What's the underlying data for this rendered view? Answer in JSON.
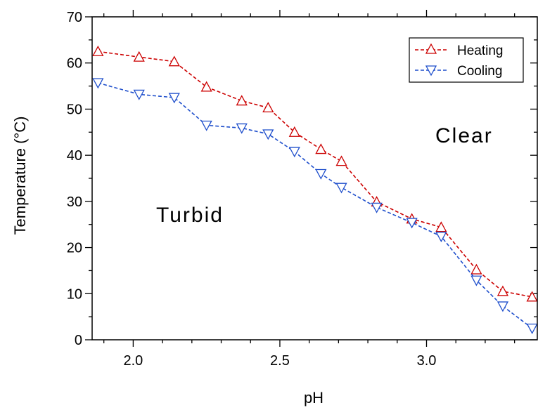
{
  "chart_data": {
    "type": "line",
    "xlabel": "pH",
    "ylabel": "Temperature (°C)",
    "xlim": [
      1.86,
      3.38
    ],
    "ylim": [
      0,
      70
    ],
    "x_ticks": [
      2.0,
      2.5,
      3.0
    ],
    "x_tick_labels": [
      "2.0",
      "2.5",
      "3.0"
    ],
    "y_ticks": [
      0,
      10,
      20,
      30,
      40,
      50,
      60,
      70
    ],
    "y_tick_labels": [
      "0",
      "10",
      "20",
      "30",
      "40",
      "50",
      "60",
      "70"
    ],
    "grid": false,
    "legend_position": "top-right",
    "annotations": [
      "Turbid",
      "Clear"
    ],
    "series": [
      {
        "name": "Heating",
        "color": "#cc0000",
        "marker": "triangle-up",
        "line_style": "dashed",
        "x": [
          1.88,
          2.02,
          2.14,
          2.25,
          2.37,
          2.46,
          2.55,
          2.64,
          2.71,
          2.83,
          2.95,
          3.05,
          3.17,
          3.26,
          3.36
        ],
        "y": [
          62.5,
          61.3,
          60.3,
          54.8,
          51.8,
          50.3,
          45.0,
          41.3,
          38.7,
          29.9,
          26.2,
          24.4,
          15.2,
          10.5,
          9.3
        ]
      },
      {
        "name": "Cooling",
        "color": "#1f4fcc",
        "marker": "triangle-down",
        "line_style": "dashed",
        "x": [
          1.88,
          2.02,
          2.14,
          2.25,
          2.37,
          2.46,
          2.55,
          2.64,
          2.71,
          2.83,
          2.95,
          3.05,
          3.17,
          3.26,
          3.36
        ],
        "y": [
          55.7,
          53.2,
          52.5,
          46.5,
          45.9,
          44.6,
          40.8,
          36.0,
          33.0,
          28.7,
          25.4,
          22.4,
          12.9,
          7.3,
          2.5
        ]
      }
    ]
  }
}
